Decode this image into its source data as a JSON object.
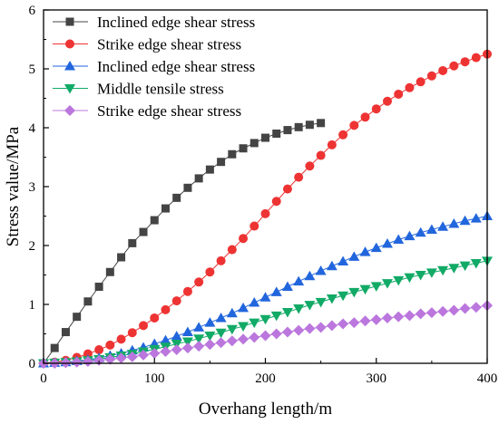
{
  "chart_data": {
    "type": "scatter",
    "xlabel": "Overhang length/m",
    "ylabel": "Stress value/MPa",
    "xlim": [
      0,
      400
    ],
    "ylim": [
      0,
      6
    ],
    "xticks": [
      0,
      100,
      200,
      300,
      400
    ],
    "yticks": [
      0,
      1,
      2,
      3,
      4,
      5,
      6
    ],
    "grid": false,
    "legend_placement": "top-left",
    "series": [
      {
        "name": "Inclined edge shear stress",
        "color": "#444444",
        "marker": "square",
        "x": [
          0,
          10,
          20,
          30,
          40,
          50,
          60,
          70,
          80,
          90,
          100,
          110,
          120,
          130,
          140,
          150,
          160,
          170,
          180,
          190,
          200,
          210,
          220,
          230,
          240,
          250
        ],
        "y": [
          0,
          0.26,
          0.53,
          0.79,
          1.05,
          1.3,
          1.55,
          1.8,
          2.04,
          2.23,
          2.43,
          2.63,
          2.81,
          2.98,
          3.14,
          3.29,
          3.42,
          3.55,
          3.65,
          3.74,
          3.83,
          3.9,
          3.96,
          4.01,
          4.05,
          4.08
        ]
      },
      {
        "name": "Strike edge shear stress",
        "color": "#ee3333",
        "marker": "circle",
        "x": [
          0,
          10,
          20,
          30,
          40,
          50,
          60,
          70,
          80,
          90,
          100,
          110,
          120,
          130,
          140,
          150,
          160,
          170,
          180,
          190,
          200,
          210,
          220,
          230,
          240,
          250,
          260,
          270,
          280,
          290,
          300,
          310,
          320,
          330,
          340,
          350,
          360,
          370,
          380,
          390,
          400
        ],
        "y": [
          0,
          0.02,
          0.05,
          0.1,
          0.16,
          0.23,
          0.31,
          0.41,
          0.52,
          0.64,
          0.77,
          0.91,
          1.06,
          1.22,
          1.38,
          1.55,
          1.74,
          1.93,
          2.12,
          2.33,
          2.54,
          2.75,
          2.96,
          3.16,
          3.35,
          3.53,
          3.71,
          3.88,
          4.04,
          4.18,
          4.32,
          4.45,
          4.57,
          4.68,
          4.78,
          4.88,
          4.97,
          5.05,
          5.12,
          5.19,
          5.25
        ]
      },
      {
        "name": "Inclined edge shear stress",
        "color": "#2266dd",
        "marker": "triangle-up",
        "x": [
          0,
          10,
          20,
          30,
          40,
          50,
          60,
          70,
          80,
          90,
          100,
          110,
          120,
          130,
          140,
          150,
          160,
          170,
          180,
          190,
          200,
          210,
          220,
          230,
          240,
          250,
          260,
          270,
          280,
          290,
          300,
          310,
          320,
          330,
          340,
          350,
          360,
          370,
          380,
          390,
          400
        ],
        "y": [
          0,
          0.01,
          0.02,
          0.04,
          0.06,
          0.09,
          0.13,
          0.17,
          0.22,
          0.27,
          0.33,
          0.39,
          0.46,
          0.53,
          0.61,
          0.69,
          0.77,
          0.85,
          0.94,
          1.03,
          1.12,
          1.21,
          1.3,
          1.39,
          1.48,
          1.57,
          1.65,
          1.73,
          1.81,
          1.89,
          1.96,
          2.03,
          2.1,
          2.16,
          2.22,
          2.27,
          2.32,
          2.37,
          2.42,
          2.46,
          2.5
        ]
      },
      {
        "name": "Middle tensile stress",
        "color": "#11aa66",
        "marker": "triangle-down",
        "x": [
          0,
          10,
          20,
          30,
          40,
          50,
          60,
          70,
          80,
          90,
          100,
          110,
          120,
          130,
          140,
          150,
          160,
          170,
          180,
          190,
          200,
          210,
          220,
          230,
          240,
          250,
          260,
          270,
          280,
          290,
          300,
          310,
          320,
          330,
          340,
          350,
          360,
          370,
          380,
          390,
          400
        ],
        "y": [
          0,
          0.01,
          0.02,
          0.03,
          0.05,
          0.07,
          0.1,
          0.13,
          0.16,
          0.2,
          0.24,
          0.28,
          0.33,
          0.37,
          0.42,
          0.47,
          0.52,
          0.58,
          0.63,
          0.69,
          0.75,
          0.81,
          0.87,
          0.93,
          0.99,
          1.04,
          1.1,
          1.15,
          1.21,
          1.26,
          1.31,
          1.36,
          1.41,
          1.46,
          1.5,
          1.54,
          1.58,
          1.62,
          1.66,
          1.7,
          1.74
        ]
      },
      {
        "name": "Strike edge shear stress",
        "color": "#bb77dd",
        "marker": "diamond",
        "x": [
          0,
          10,
          20,
          30,
          40,
          50,
          60,
          70,
          80,
          90,
          100,
          110,
          120,
          130,
          140,
          150,
          160,
          170,
          180,
          190,
          200,
          210,
          220,
          230,
          240,
          250,
          260,
          270,
          280,
          290,
          300,
          310,
          320,
          330,
          340,
          350,
          360,
          370,
          380,
          390,
          400
        ],
        "y": [
          0,
          0.0,
          0.01,
          0.02,
          0.03,
          0.05,
          0.07,
          0.09,
          0.11,
          0.14,
          0.17,
          0.2,
          0.23,
          0.26,
          0.29,
          0.32,
          0.35,
          0.38,
          0.41,
          0.44,
          0.47,
          0.5,
          0.53,
          0.56,
          0.59,
          0.61,
          0.64,
          0.67,
          0.69,
          0.72,
          0.74,
          0.77,
          0.79,
          0.81,
          0.84,
          0.86,
          0.88,
          0.9,
          0.93,
          0.95,
          0.98
        ]
      }
    ]
  }
}
